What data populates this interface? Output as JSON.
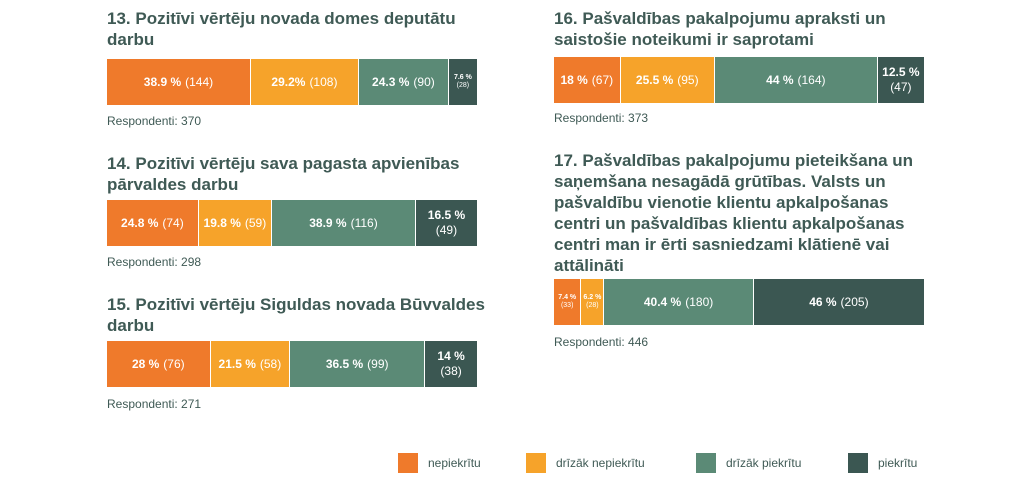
{
  "colors": {
    "nepiekritu": "#ef7a2b",
    "drizak_nepiekritu": "#f6a32a",
    "drizak_piekritu": "#5b8a76",
    "piekritu": "#3b5752"
  },
  "legend": [
    {
      "key": "nepiekritu",
      "label": "nepiekrītu"
    },
    {
      "key": "drizak_nepiekritu",
      "label": "drīzāk nepiekrītu"
    },
    {
      "key": "drizak_piekritu",
      "label": "drīzāk piekrītu"
    },
    {
      "key": "piekritu",
      "label": "piekrītu"
    }
  ],
  "chart_data": [
    {
      "type": "bar",
      "stacked": true,
      "orientation": "horizontal",
      "title": "13. Pozitīvi vērtēju novada domes deputātu darbu",
      "series": [
        {
          "name": "nepiekrītu",
          "percent": 38.9,
          "count": 144,
          "label": "38.9 %",
          "count_label": "(144)"
        },
        {
          "name": "drīzāk nepiekrītu",
          "percent": 29.2,
          "count": 108,
          "label": "29.2%",
          "count_label": "(108)"
        },
        {
          "name": "drīzāk piekrītu",
          "percent": 24.3,
          "count": 90,
          "label": "24.3 %",
          "count_label": "(90)"
        },
        {
          "name": "piekrītu",
          "percent": 7.6,
          "count": 28,
          "label": "7.6 %",
          "count_label": "(28)"
        }
      ],
      "respondents": "Respondenti: 370"
    },
    {
      "type": "bar",
      "stacked": true,
      "orientation": "horizontal",
      "title": "14. Pozitīvi vērtēju sava pagasta apvienības pārvaldes darbu",
      "series": [
        {
          "name": "nepiekrītu",
          "percent": 24.8,
          "count": 74,
          "label": "24.8 %",
          "count_label": "(74)"
        },
        {
          "name": "drīzāk nepiekrītu",
          "percent": 19.8,
          "count": 59,
          "label": "19.8 %",
          "count_label": "(59)"
        },
        {
          "name": "drīzāk piekrītu",
          "percent": 38.9,
          "count": 116,
          "label": "38.9 %",
          "count_label": "(116)"
        },
        {
          "name": "piekrītu",
          "percent": 16.5,
          "count": 49,
          "label": "16.5 %",
          "count_label": "(49)"
        }
      ],
      "respondents": "Respondenti: 298"
    },
    {
      "type": "bar",
      "stacked": true,
      "orientation": "horizontal",
      "title": "15. Pozitīvi vērtēju Siguldas novada Būvvaldes darbu",
      "series": [
        {
          "name": "nepiekrītu",
          "percent": 28,
          "count": 76,
          "label": "28 %",
          "count_label": "(76)"
        },
        {
          "name": "drīzāk nepiekrītu",
          "percent": 21.5,
          "count": 58,
          "label": "21.5 %",
          "count_label": "(58)"
        },
        {
          "name": "drīzāk piekrītu",
          "percent": 36.5,
          "count": 99,
          "label": "36.5 %",
          "count_label": "(99)"
        },
        {
          "name": "piekrītu",
          "percent": 14,
          "count": 38,
          "label": "14 %",
          "count_label": "(38)"
        }
      ],
      "respondents": "Respondenti: 271"
    },
    {
      "type": "bar",
      "stacked": true,
      "orientation": "horizontal",
      "title": "16. Pašvaldības pakalpojumu apraksti un saistošie noteikumi ir saprotami",
      "series": [
        {
          "name": "nepiekrītu",
          "percent": 18,
          "count": 67,
          "label": "18 %",
          "count_label": "(67)"
        },
        {
          "name": "drīzāk nepiekrītu",
          "percent": 25.5,
          "count": 95,
          "label": "25.5 %",
          "count_label": "(95)"
        },
        {
          "name": "drīzāk piekrītu",
          "percent": 44,
          "count": 164,
          "label": "44 %",
          "count_label": "(164)"
        },
        {
          "name": "piekrītu",
          "percent": 12.5,
          "count": 47,
          "label": "12.5 %",
          "count_label": "(47)"
        }
      ],
      "respondents": "Respondenti: 373"
    },
    {
      "type": "bar",
      "stacked": true,
      "orientation": "horizontal",
      "title": "17. Pašvaldības pakalpojumu pieteikšana un saņemšana nesagādā grūtības. Valsts un pašvaldību vienotie klientu apkalpošanas centri un pašvaldības klientu apkalpošanas centri man ir ērti sasniedzami klātienē vai attālināti",
      "series": [
        {
          "name": "nepiekrītu",
          "percent": 7.4,
          "count": 33,
          "label": "7.4 %",
          "count_label": "(33)"
        },
        {
          "name": "drīzāk nepiekrītu",
          "percent": 6.2,
          "count": 28,
          "label": "6.2 %",
          "count_label": "(28)"
        },
        {
          "name": "drīzāk piekrītu",
          "percent": 40.4,
          "count": 180,
          "label": "40.4 %",
          "count_label": "(180)"
        },
        {
          "name": "piekrītu",
          "percent": 46,
          "count": 205,
          "label": "46 %",
          "count_label": "(205)"
        }
      ],
      "respondents": "Respondenti: 446"
    }
  ]
}
